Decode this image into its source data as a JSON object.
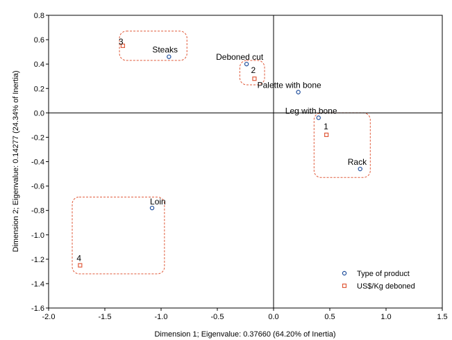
{
  "chart_data": {
    "type": "scatter",
    "xlabel": "Dimension 1; Eigenvalue: 0.37660 (64.20% of Inertia)",
    "ylabel": "Dimension 2; Eigenvalue: 0.14277 (24.34% of Inertia)",
    "xlim": [
      -2.0,
      1.5
    ],
    "ylim": [
      -1.6,
      0.8
    ],
    "xticks": [
      "-2.0",
      "-1.5",
      "-1.0",
      "-0.5",
      "0.0",
      "0.5",
      "1.0",
      "1.5"
    ],
    "yticks": [
      "0.8",
      "0.6",
      "0.4",
      "0.2",
      "0.0",
      "-0.2",
      "-0.4",
      "-0.6",
      "-0.8",
      "-1.0",
      "-1.2",
      "-1.4",
      "-1.6"
    ],
    "legend_position": "bottom-right",
    "series": [
      {
        "name": "Type of product",
        "color": "#1f4e9c",
        "marker": "circle",
        "points": [
          {
            "label": "Steaks",
            "x": -0.93,
            "y": 0.46
          },
          {
            "label": "Deboned cut",
            "x": -0.24,
            "y": 0.4
          },
          {
            "label": "Palette with bone",
            "x": 0.22,
            "y": 0.17
          },
          {
            "label": "Leg with bone",
            "x": 0.4,
            "y": -0.04
          },
          {
            "label": "Rack",
            "x": 0.77,
            "y": -0.46
          },
          {
            "label": "Loin",
            "x": -1.08,
            "y": -0.78
          }
        ]
      },
      {
        "name": "US$/Kg deboned",
        "color": "#e05a3a",
        "marker": "square",
        "points": [
          {
            "label": "1",
            "x": 0.47,
            "y": -0.18
          },
          {
            "label": "2",
            "x": -0.17,
            "y": 0.28
          },
          {
            "label": "3",
            "x": -1.34,
            "y": 0.55
          },
          {
            "label": "4",
            "x": -1.72,
            "y": -1.25
          }
        ]
      }
    ],
    "groups_color": "#e05a3a",
    "groups": [
      {
        "x0": -1.37,
        "x1": -0.77,
        "y0": 0.43,
        "y1": 0.67
      },
      {
        "x0": -0.3,
        "x1": -0.08,
        "y0": 0.23,
        "y1": 0.43
      },
      {
        "x0": 0.36,
        "x1": 0.86,
        "y0": -0.53,
        "y1": 0.0
      },
      {
        "x0": -1.79,
        "x1": -0.97,
        "y0": -1.32,
        "y1": -0.69
      }
    ]
  }
}
